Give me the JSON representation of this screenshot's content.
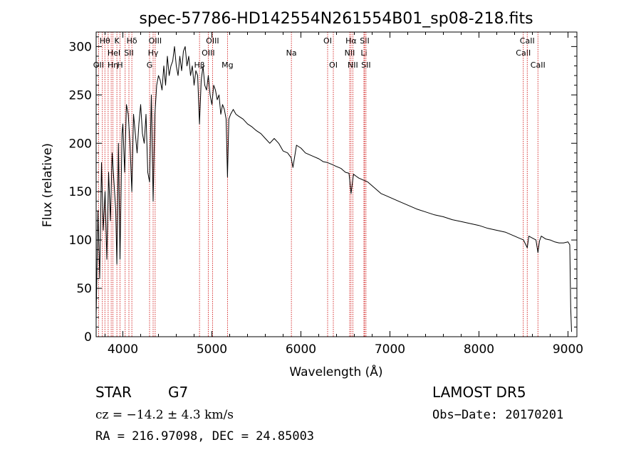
{
  "chart_data": {
    "type": "line",
    "title": "spec-57786-HD142554N261554B01_sp08-218.fits",
    "xlabel": "Wavelength (Å)",
    "ylabel": "Flux (relative)",
    "xlim": [
      3700,
      9100
    ],
    "ylim": [
      0,
      315
    ],
    "xticks": [
      4000,
      5000,
      6000,
      7000,
      8000,
      9000
    ],
    "yticks": [
      0,
      50,
      100,
      150,
      200,
      250,
      300
    ],
    "grid": false,
    "series": [
      {
        "x": [
          3700,
          3720,
          3740,
          3760,
          3780,
          3800,
          3820,
          3840,
          3860,
          3880,
          3900,
          3920,
          3933,
          3950,
          3968,
          3990,
          4000,
          4020,
          4040,
          4060,
          4080,
          4101,
          4120,
          4140,
          4160,
          4180,
          4200,
          4220,
          4240,
          4260,
          4280,
          4300,
          4320,
          4340,
          4360,
          4380,
          4400,
          4420,
          4440,
          4460,
          4480,
          4500,
          4520,
          4540,
          4560,
          4580,
          4600,
          4620,
          4640,
          4660,
          4680,
          4700,
          4720,
          4740,
          4760,
          4780,
          4800,
          4820,
          4840,
          4861,
          4880,
          4900,
          4920,
          4940,
          4960,
          4980,
          5000,
          5020,
          5040,
          5060,
          5080,
          5100,
          5120,
          5140,
          5160,
          5175,
          5190,
          5210,
          5240,
          5270,
          5300,
          5350,
          5400,
          5450,
          5500,
          5550,
          5600,
          5650,
          5700,
          5750,
          5800,
          5850,
          5890,
          5910,
          5950,
          6000,
          6050,
          6100,
          6150,
          6200,
          6250,
          6300,
          6350,
          6400,
          6450,
          6500,
          6540,
          6563,
          6590,
          6620,
          6650,
          6700,
          6750,
          6800,
          6850,
          6900,
          6950,
          7000,
          7100,
          7200,
          7300,
          7400,
          7500,
          7600,
          7700,
          7800,
          7900,
          8000,
          8100,
          8200,
          8300,
          8400,
          8450,
          8500,
          8542,
          8560,
          8600,
          8640,
          8662,
          8680,
          8700,
          8750,
          8800,
          8850,
          8900,
          8950,
          9000,
          9020,
          9030,
          9040
        ],
        "y": [
          20,
          130,
          60,
          180,
          110,
          150,
          80,
          170,
          120,
          190,
          160,
          130,
          75,
          200,
          80,
          210,
          220,
          170,
          240,
          230,
          200,
          150,
          230,
          210,
          190,
          220,
          240,
          210,
          200,
          230,
          170,
          160,
          250,
          140,
          230,
          260,
          270,
          265,
          255,
          280,
          260,
          290,
          270,
          280,
          285,
          300,
          280,
          270,
          290,
          275,
          295,
          300,
          280,
          290,
          270,
          280,
          260,
          275,
          270,
          220,
          265,
          280,
          260,
          255,
          270,
          250,
          240,
          260,
          255,
          245,
          250,
          230,
          240,
          235,
          225,
          165,
          225,
          230,
          235,
          230,
          228,
          225,
          220,
          217,
          213,
          210,
          205,
          200,
          205,
          200,
          192,
          190,
          185,
          175,
          198,
          195,
          190,
          188,
          186,
          184,
          181,
          180,
          178,
          176,
          174,
          170,
          169,
          148,
          168,
          166,
          164,
          162,
          160,
          156,
          152,
          148,
          146,
          144,
          140,
          136,
          132,
          129,
          126,
          124,
          121,
          119,
          117,
          115,
          112,
          110,
          108,
          104,
          102,
          100,
          92,
          104,
          102,
          100,
          87,
          99,
          104,
          101,
          100,
          98,
          97,
          97,
          98,
          95,
          30,
          5
        ],
        "stroke": "#000000"
      }
    ],
    "spectral_lines": [
      {
        "x": 3727,
        "label": "OII",
        "row": 3
      },
      {
        "x": 3770,
        "label": "",
        "row": 3
      },
      {
        "x": 3798,
        "label": "Hθ",
        "row": 1
      },
      {
        "x": 3835,
        "label": "",
        "row": 2
      },
      {
        "x": 3869,
        "label": "",
        "row": 2
      },
      {
        "x": 3889,
        "label": "Hη",
        "row": 3
      },
      {
        "x": 3933,
        "label": "K",
        "row": 1
      },
      {
        "x": 3968,
        "label": "H",
        "row": 3
      },
      {
        "x": 4026,
        "label": "",
        "row": 2
      },
      {
        "x": 4068,
        "label": "SII",
        "row": 2
      },
      {
        "x": 4101,
        "label": "Hδ",
        "row": 1
      },
      {
        "x": 4300,
        "label": "G",
        "row": 3
      },
      {
        "x": 4340,
        "label": "Hγ",
        "row": 2
      },
      {
        "x": 4363,
        "label": "OIII",
        "row": 1
      },
      {
        "x": 4861,
        "label": "Hβ",
        "row": 3
      },
      {
        "x": 4959,
        "label": "OIII",
        "row": 2
      },
      {
        "x": 5007,
        "label": "OIII",
        "row": 1
      },
      {
        "x": 5175,
        "label": "Mg",
        "row": 3
      },
      {
        "x": 5893,
        "label": "Na",
        "row": 2
      },
      {
        "x": 6300,
        "label": "OI",
        "row": 1
      },
      {
        "x": 6364,
        "label": "OI",
        "row": 3
      },
      {
        "x": 6548,
        "label": "NII",
        "row": 2
      },
      {
        "x": 6563,
        "label": "Hα",
        "row": 1
      },
      {
        "x": 6583,
        "label": "NII",
        "row": 3
      },
      {
        "x": 6708,
        "label": "Li",
        "row": 2
      },
      {
        "x": 6716,
        "label": "SII",
        "row": 1
      },
      {
        "x": 6731,
        "label": "SII",
        "row": 3
      },
      {
        "x": 8498,
        "label": "CaII",
        "row": 2
      },
      {
        "x": 8542,
        "label": "CaII",
        "row": 1
      },
      {
        "x": 8662,
        "label": "CaII",
        "row": 3
      }
    ],
    "line_color": "#cc0000",
    "legend_labels": [
      "HeI"
    ]
  },
  "footer": {
    "object_type": "STAR",
    "subclass": "G7",
    "survey": "LAMOST DR5",
    "cz": "cz = −14.2 ± 4.3 km/s",
    "obs_date": "Obs−Date: 20170201",
    "radec": "RA = 216.97098, DEC =  24.85003"
  }
}
